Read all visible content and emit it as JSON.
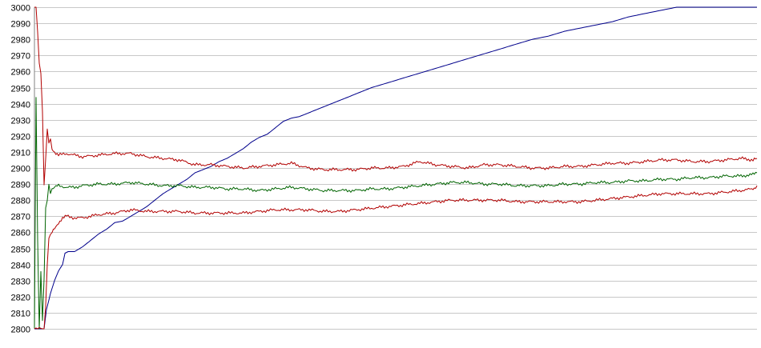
{
  "chart_data": {
    "type": "line",
    "title": "",
    "xlabel": "",
    "ylabel": "",
    "ylim": [
      2800,
      3000
    ],
    "xlim": [
      0,
      900
    ],
    "y_ticks": [
      3000,
      2990,
      2980,
      2970,
      2960,
      2950,
      2940,
      2930,
      2920,
      2910,
      2900,
      2890,
      2880,
      2870,
      2860,
      2850,
      2840,
      2830,
      2820,
      2810,
      2800
    ],
    "grid": true,
    "legend": "none",
    "series": [
      {
        "color": "#00008b",
        "x": [
          0,
          8,
          12,
          15,
          20,
          25,
          30,
          35,
          38,
          42,
          50,
          60,
          70,
          80,
          90,
          100,
          110,
          120,
          130,
          140,
          150,
          160,
          170,
          180,
          190,
          200,
          210,
          220,
          230,
          240,
          250,
          260,
          270,
          280,
          290,
          300,
          310,
          320,
          330,
          340,
          350,
          360,
          370,
          380,
          390,
          400,
          420,
          440,
          460,
          480,
          500,
          520,
          540,
          560,
          580,
          600,
          620,
          640,
          660,
          680,
          700,
          720,
          740,
          760,
          780,
          800,
          820,
          840,
          860,
          880,
          895,
          900
        ],
        "values": [
          2800,
          2800,
          2800,
          2812,
          2822,
          2830,
          2836,
          2840,
          2847,
          2848,
          2848,
          2851,
          2855,
          2859,
          2862,
          2866,
          2867,
          2870,
          2873,
          2876,
          2880,
          2884,
          2887,
          2890,
          2893,
          2897,
          2899,
          2901,
          2904,
          2906,
          2909,
          2912,
          2916,
          2919,
          2921,
          2925,
          2929,
          2931,
          2932,
          2934,
          2936,
          2938,
          2940,
          2942,
          2944,
          2946,
          2950,
          2953,
          2956,
          2959,
          2962,
          2965,
          2968,
          2971,
          2974,
          2977,
          2980,
          2982,
          2985,
          2987,
          2989,
          2991,
          2994,
          2996,
          2998,
          3000,
          3000,
          3000,
          3000,
          3000,
          3000,
          3000
        ]
      },
      {
        "color": "#b20000",
        "x": [
          0,
          2,
          4,
          6,
          8,
          10,
          12,
          14,
          16,
          18,
          20,
          22,
          25,
          30,
          40,
          50,
          60,
          80,
          100,
          120,
          140,
          160,
          180,
          200,
          220,
          240,
          260,
          280,
          300,
          320,
          340,
          360,
          380,
          400,
          420,
          440,
          460,
          480,
          500,
          520,
          540,
          560,
          580,
          600,
          620,
          640,
          660,
          680,
          700,
          720,
          740,
          760,
          780,
          800,
          820,
          840,
          860,
          880,
          895,
          900
        ],
        "values": [
          3000,
          3000,
          2985,
          2965,
          2960,
          2935,
          2890,
          2905,
          2924,
          2915,
          2918,
          2912,
          2910,
          2908,
          2909,
          2908,
          2907,
          2908,
          2909,
          2909,
          2907,
          2906,
          2905,
          2902,
          2902,
          2901,
          2900,
          2901,
          2902,
          2903,
          2900,
          2899,
          2899,
          2899,
          2900,
          2900,
          2901,
          2904,
          2902,
          2901,
          2900,
          2902,
          2902,
          2901,
          2900,
          2900,
          2901,
          2901,
          2902,
          2903,
          2903,
          2904,
          2905,
          2905,
          2904,
          2904,
          2905,
          2906,
          2905,
          2906
        ]
      },
      {
        "color": "#006400",
        "x": [
          0,
          2,
          4,
          6,
          8,
          10,
          12,
          14,
          16,
          18,
          20,
          22,
          25,
          30,
          40,
          50,
          60,
          80,
          100,
          120,
          140,
          160,
          180,
          200,
          220,
          240,
          260,
          280,
          300,
          320,
          340,
          360,
          380,
          400,
          420,
          440,
          460,
          480,
          500,
          520,
          540,
          560,
          580,
          600,
          620,
          640,
          660,
          680,
          700,
          720,
          740,
          760,
          780,
          800,
          820,
          840,
          860,
          880,
          895,
          900
        ],
        "values": [
          2800,
          2945,
          2855,
          2800,
          2835,
          2805,
          2830,
          2875,
          2880,
          2890,
          2885,
          2887,
          2888,
          2889,
          2888,
          2888,
          2889,
          2890,
          2890,
          2891,
          2890,
          2889,
          2889,
          2888,
          2888,
          2887,
          2887,
          2886,
          2887,
          2888,
          2887,
          2886,
          2886,
          2886,
          2887,
          2887,
          2888,
          2889,
          2890,
          2891,
          2891,
          2890,
          2890,
          2889,
          2889,
          2889,
          2890,
          2890,
          2891,
          2891,
          2892,
          2892,
          2893,
          2893,
          2894,
          2894,
          2895,
          2895,
          2896,
          2897
        ]
      },
      {
        "color": "#b20000",
        "x": [
          0,
          2,
          4,
          6,
          8,
          10,
          12,
          14,
          16,
          18,
          20,
          22,
          25,
          30,
          35,
          40,
          50,
          60,
          80,
          100,
          120,
          140,
          160,
          180,
          200,
          220,
          240,
          260,
          280,
          300,
          320,
          340,
          360,
          380,
          400,
          420,
          440,
          460,
          480,
          500,
          520,
          540,
          560,
          580,
          600,
          620,
          640,
          660,
          680,
          700,
          720,
          740,
          760,
          780,
          800,
          820,
          840,
          860,
          880,
          895,
          900
        ],
        "values": [
          2800,
          2800,
          2800,
          2800,
          2800,
          2800,
          2800,
          2815,
          2840,
          2857,
          2858,
          2860,
          2862,
          2866,
          2869,
          2870,
          2869,
          2869,
          2871,
          2872,
          2874,
          2873,
          2873,
          2873,
          2872,
          2872,
          2872,
          2872,
          2873,
          2874,
          2874,
          2874,
          2873,
          2873,
          2874,
          2875,
          2876,
          2877,
          2878,
          2879,
          2880,
          2880,
          2880,
          2880,
          2879,
          2879,
          2879,
          2879,
          2879,
          2880,
          2881,
          2882,
          2883,
          2884,
          2884,
          2884,
          2884,
          2885,
          2886,
          2887,
          2889
        ]
      }
    ]
  }
}
